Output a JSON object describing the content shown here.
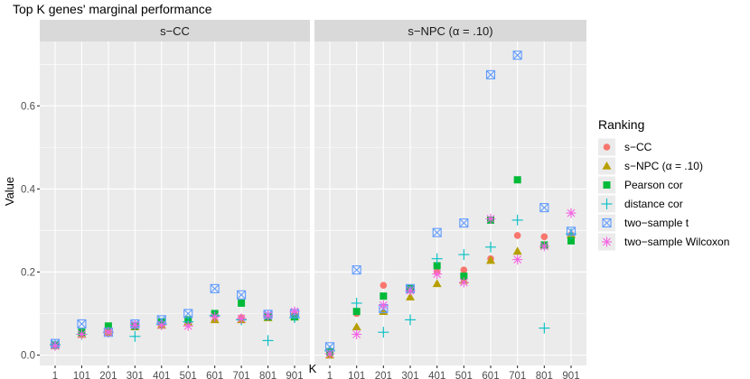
{
  "chart_data": {
    "type": "scatter",
    "title": "Top K genes' marginal performance",
    "xlabel": "K",
    "ylabel": "Value",
    "x": [
      1,
      101,
      201,
      301,
      401,
      501,
      601,
      701,
      801,
      901
    ],
    "x_ticks": [
      "1",
      "101",
      "201",
      "301",
      "401",
      "501",
      "601",
      "701",
      "801",
      "901"
    ],
    "y_ticks": [
      "0.0",
      "0.2",
      "0.4",
      "0.6"
    ],
    "y_tick_values": [
      0.0,
      0.2,
      0.4,
      0.6
    ],
    "ylim": [
      -0.025,
      0.755
    ],
    "grid": true,
    "legend": {
      "title": "Ranking",
      "placement": "right",
      "entries": [
        "s−CC",
        "s−NPC (α = .10)",
        "Pearson cor",
        "distance cor",
        "two−sample t",
        "two−sample Wilcoxon"
      ]
    },
    "series_styles": [
      {
        "shape": "circle",
        "color": "#F8766D"
      },
      {
        "shape": "triangle",
        "color": "#B79F00"
      },
      {
        "shape": "square",
        "color": "#00BA38"
      },
      {
        "shape": "plus",
        "color": "#00BFC4"
      },
      {
        "shape": "boxcross",
        "color": "#619CFF"
      },
      {
        "shape": "asterisk",
        "color": "#F564E3"
      }
    ],
    "panels": [
      {
        "label": "s−CC",
        "series": [
          {
            "name": "s−CC",
            "values": [
              0.025,
              0.052,
              0.058,
              0.072,
              0.075,
              0.083,
              0.095,
              0.09,
              0.092,
              0.098
            ]
          },
          {
            "name": "s−NPC (α = .10)",
            "values": [
              0.023,
              0.05,
              0.055,
              0.068,
              0.072,
              0.08,
              0.085,
              0.085,
              0.09,
              0.092
            ]
          },
          {
            "name": "Pearson cor",
            "values": [
              0.024,
              0.055,
              0.07,
              0.07,
              0.08,
              0.085,
              0.1,
              0.125,
              0.092,
              0.092
            ]
          },
          {
            "name": "distance cor",
            "values": [
              0.025,
              0.05,
              0.055,
              0.045,
              0.075,
              0.08,
              0.095,
              0.085,
              0.035,
              0.09
            ]
          },
          {
            "name": "two−sample t",
            "values": [
              0.028,
              0.075,
              0.055,
              0.075,
              0.085,
              0.1,
              0.16,
              0.145,
              0.098,
              0.1
            ]
          },
          {
            "name": "two−sample Wilcoxon",
            "values": [
              0.022,
              0.05,
              0.055,
              0.072,
              0.072,
              0.07,
              0.092,
              0.088,
              0.095,
              0.105
            ]
          }
        ]
      },
      {
        "label": "s−NPC (α = .10)",
        "series": [
          {
            "name": "s−CC",
            "values": [
              0.005,
              0.1,
              0.168,
              0.16,
              0.2,
              0.205,
              0.232,
              0.288,
              0.285,
              0.29
            ]
          },
          {
            "name": "s−NPC (α = .10)",
            "values": [
              0.0,
              0.068,
              0.105,
              0.14,
              0.172,
              0.18,
              0.228,
              0.25,
              0.265,
              0.29
            ]
          },
          {
            "name": "Pearson cor",
            "values": [
              0.008,
              0.105,
              0.142,
              0.16,
              0.215,
              0.19,
              0.325,
              0.422,
              0.265,
              0.275
            ]
          },
          {
            "name": "distance cor",
            "values": [
              0.01,
              0.125,
              0.055,
              0.085,
              0.232,
              0.242,
              0.26,
              0.325,
              0.065,
              0.292
            ]
          },
          {
            "name": "two−sample t",
            "values": [
              0.02,
              0.205,
              0.112,
              0.16,
              0.295,
              0.318,
              0.675,
              0.722,
              0.355,
              0.298
            ]
          },
          {
            "name": "two−sample Wilcoxon",
            "values": [
              0.003,
              0.05,
              0.12,
              0.155,
              0.195,
              0.175,
              0.328,
              0.23,
              0.262,
              0.342
            ]
          }
        ]
      }
    ]
  }
}
